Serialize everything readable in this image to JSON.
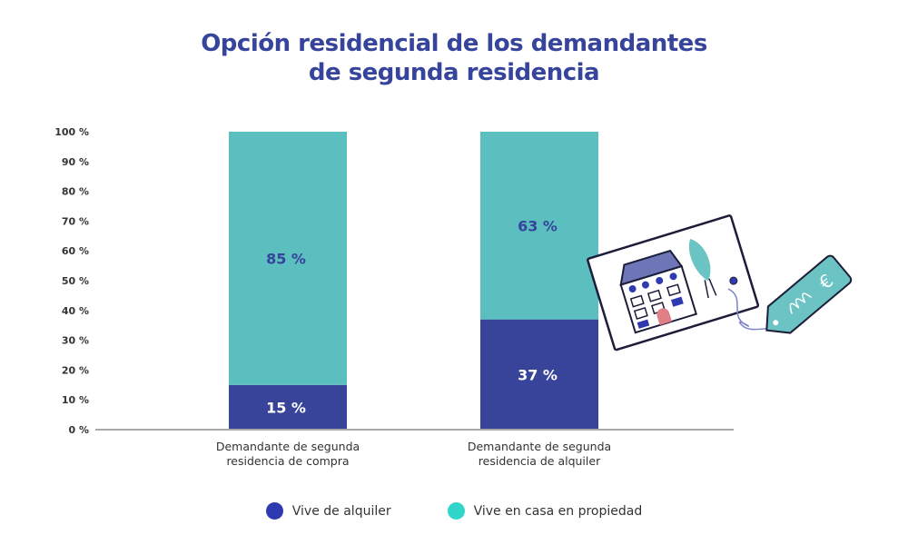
{
  "chart_data": {
    "type": "bar",
    "stacked": true,
    "title": "Opción residencial de los demandantes de segunda residencia",
    "title_lines": [
      "Opción residencial de los demandantes",
      "de segunda residencia"
    ],
    "categories": [
      [
        "Demandante de segunda",
        "residencia de compra"
      ],
      [
        "Demandante de segunda",
        "residencia de alquiler"
      ]
    ],
    "series": [
      {
        "name": "Vive de alquiler",
        "values": [
          15,
          37
        ],
        "labels": [
          "15 %",
          "37 %"
        ],
        "color": "#37449a",
        "legend_color": "#2f3ab0",
        "label_color": "#ffffff"
      },
      {
        "name": "Vive en casa en propiedad",
        "values": [
          85,
          63
        ],
        "labels": [
          "85 %",
          "63 %"
        ],
        "color": "#5bbfbf",
        "legend_color": "#2fd6c9",
        "label_color": "#36449b"
      }
    ],
    "ylim": [
      0,
      100
    ],
    "yticks": [
      "0 %",
      "10 %",
      "20 %",
      "30 %",
      "40 %",
      "50 %",
      "60 %",
      "70 %",
      "80 %",
      "90 %",
      "100 %"
    ],
    "grid": false,
    "legend_position": "bottom",
    "xlabel": "",
    "ylabel": ""
  }
}
